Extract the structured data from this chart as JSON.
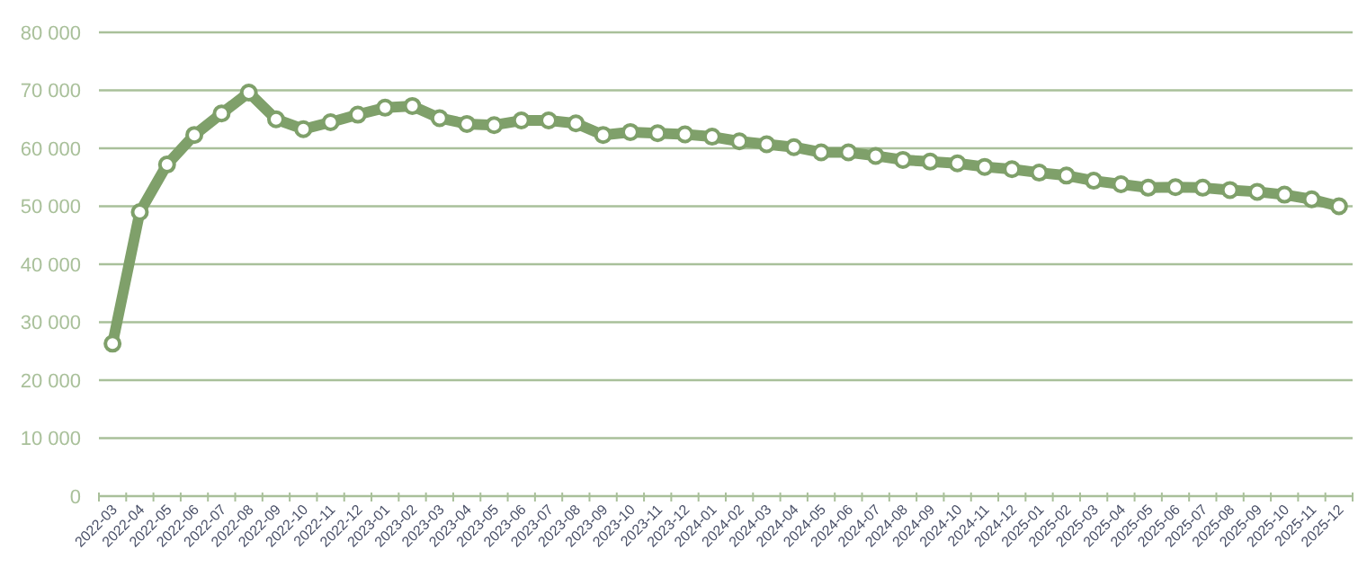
{
  "chart_data": {
    "type": "line",
    "categories": [
      "2022-03",
      "2022-04",
      "2022-05",
      "2022-06",
      "2022-07",
      "2022-08",
      "2022-09",
      "2022-10",
      "2022-11",
      "2022-12",
      "2023-01",
      "2023-02",
      "2023-03",
      "2023-04",
      "2023-05",
      "2023-06",
      "2023-07",
      "2023-08",
      "2023-09",
      "2023-10",
      "2023-11",
      "2023-12",
      "2024-01",
      "2024-02",
      "2024-03",
      "2024-04",
      "2024-05",
      "2024-06",
      "2024-07",
      "2024-08",
      "2024-09",
      "2024-10",
      "2024-11",
      "2024-12",
      "2025-01",
      "2025-02",
      "2025-03",
      "2025-04",
      "2025-05",
      "2025-06",
      "2025-07",
      "2025-08",
      "2025-09",
      "2025-10",
      "2025-11",
      "2025-12"
    ],
    "series": [
      {
        "color": "#7fa06a",
        "values": [
          26300,
          49000,
          57200,
          62300,
          66000,
          69600,
          65000,
          63300,
          64500,
          65800,
          67000,
          67300,
          65200,
          64200,
          64000,
          64800,
          64800,
          64300,
          62300,
          62800,
          62600,
          62400,
          62000,
          61200,
          60700,
          60200,
          59300,
          59300,
          58700,
          58000,
          57700,
          57400,
          56800,
          56400,
          55800,
          55300,
          54400,
          53800,
          53200,
          53300,
          53200,
          52800,
          52500,
          52000,
          51200,
          50000
        ]
      }
    ],
    "ylim": [
      0,
      80000
    ],
    "yticks": [
      {
        "value": 0,
        "label": "0"
      },
      {
        "value": 10000,
        "label": "10 000"
      },
      {
        "value": 20000,
        "label": "20 000"
      },
      {
        "value": 30000,
        "label": "30 000"
      },
      {
        "value": 40000,
        "label": "40 000"
      },
      {
        "value": 50000,
        "label": "50 000"
      },
      {
        "value": 60000,
        "label": "60 000"
      },
      {
        "value": 70000,
        "label": "70 000"
      },
      {
        "value": 80000,
        "label": "80 000"
      }
    ],
    "grid": "y",
    "marker": "circle",
    "line_style": "solid"
  }
}
